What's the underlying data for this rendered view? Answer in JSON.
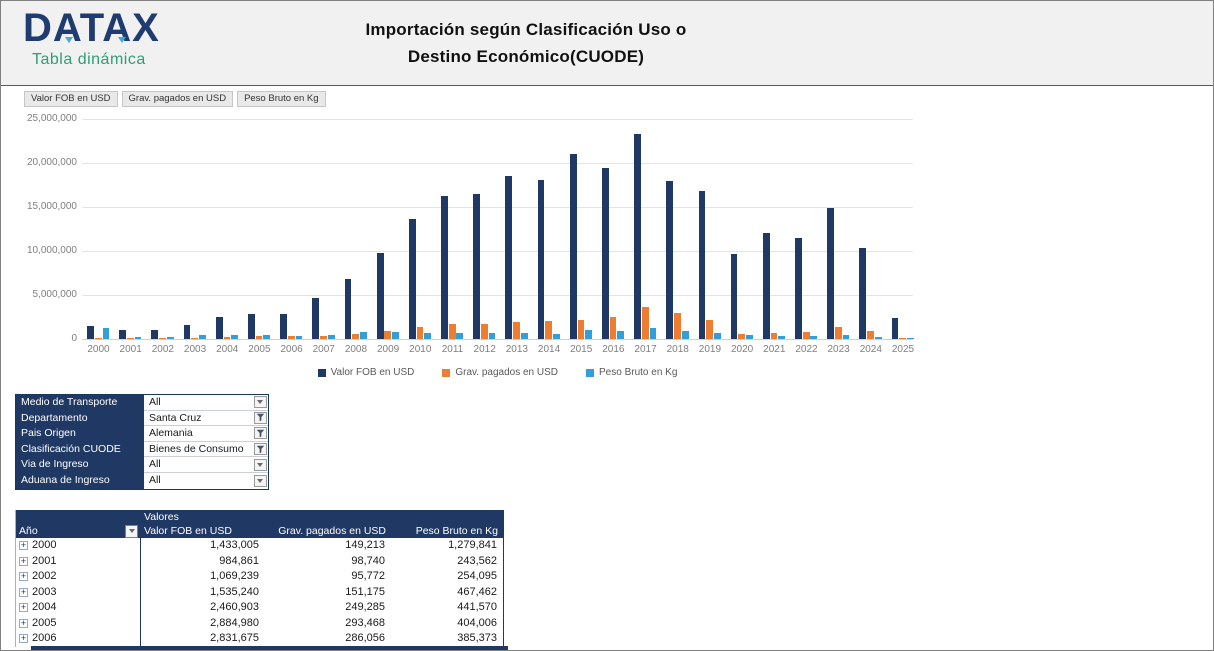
{
  "header": {
    "logo_text": "DATAX",
    "logo_subtitle": "Tabla dinámica",
    "title_line1": "Importación según Clasificación Uso o",
    "title_line2": "Destino Económico(CUODE)"
  },
  "field_buttons": [
    {
      "label": "Valor FOB en USD"
    },
    {
      "label": "Grav. pagados en USD"
    },
    {
      "label": "Peso Bruto en Kg"
    }
  ],
  "chart_data": {
    "type": "bar",
    "categories": [
      "2000",
      "2001",
      "2002",
      "2003",
      "2004",
      "2005",
      "2006",
      "2007",
      "2008",
      "2009",
      "2010",
      "2011",
      "2012",
      "2013",
      "2014",
      "2015",
      "2016",
      "2017",
      "2018",
      "2019",
      "2020",
      "2021",
      "2022",
      "2023",
      "2024",
      "2025"
    ],
    "series": [
      {
        "name": "Valor FOB en USD",
        "color": "#203864",
        "values": [
          1433005,
          984861,
          1069239,
          1535240,
          2460903,
          2884980,
          2831675,
          4650000,
          6850000,
          9750000,
          13650000,
          16250000,
          16500000,
          18550000,
          18100000,
          21000000,
          19450000,
          23250000,
          17950000,
          16850000,
          9700000,
          12050000,
          11500000,
          14900000,
          10350000,
          2350000
        ]
      },
      {
        "name": "Grav. pagados en USD",
        "color": "#ED7D31",
        "values": [
          149213,
          98740,
          95772,
          151175,
          249285,
          293468,
          286056,
          380000,
          620000,
          900000,
          1350000,
          1650000,
          1750000,
          1950000,
          2050000,
          2150000,
          2550000,
          3600000,
          2950000,
          2200000,
          600000,
          720000,
          800000,
          1400000,
          900000,
          130000
        ]
      },
      {
        "name": "Peso Bruto en Kg",
        "color": "#339FD9",
        "values": [
          1279841,
          243562,
          254095,
          467462,
          441570,
          404006,
          385373,
          480000,
          780000,
          800000,
          730000,
          650000,
          680000,
          650000,
          620000,
          1000000,
          920000,
          1200000,
          900000,
          700000,
          400000,
          330000,
          360000,
          460000,
          250000,
          40000
        ]
      }
    ],
    "ylim": [
      0,
      25000000
    ],
    "yticks": [
      {
        "value": 0,
        "label": "0"
      },
      {
        "value": 5000000,
        "label": "5,000,000"
      },
      {
        "value": 10000000,
        "label": "10,000,000"
      },
      {
        "value": 15000000,
        "label": "15,000,000"
      },
      {
        "value": 20000000,
        "label": "20,000,000"
      },
      {
        "value": 25000000,
        "label": "25,000,000"
      }
    ],
    "grid": true,
    "legend_position": "bottom",
    "title": "",
    "xlabel": "",
    "ylabel": ""
  },
  "filters": [
    {
      "label": "Medio de Transporte",
      "value": "All",
      "filtered": false
    },
    {
      "label": "Departamento",
      "value": "Santa Cruz",
      "filtered": true
    },
    {
      "label": "Pais Origen",
      "value": "Alemania",
      "filtered": true
    },
    {
      "label": "Clasificación CUODE",
      "value": "Bienes de Consumo",
      "filtered": true
    },
    {
      "label": "Via de Ingreso",
      "value": "All",
      "filtered": false
    },
    {
      "label": "Aduana de Ingreso",
      "value": "All",
      "filtered": false
    }
  ],
  "pivot_table": {
    "values_label": "Valores",
    "row_field": "Año",
    "value_columns": [
      "Valor FOB en USD",
      "Grav. pagados en USD",
      "Peso Bruto en Kg"
    ],
    "rows": [
      {
        "year": "2000",
        "values": [
          "1,433,005",
          "149,213",
          "1,279,841"
        ]
      },
      {
        "year": "2001",
        "values": [
          "984,861",
          "98,740",
          "243,562"
        ]
      },
      {
        "year": "2002",
        "values": [
          "1,069,239",
          "95,772",
          "254,095"
        ]
      },
      {
        "year": "2003",
        "values": [
          "1,535,240",
          "151,175",
          "467,462"
        ]
      },
      {
        "year": "2004",
        "values": [
          "2,460,903",
          "249,285",
          "441,570"
        ]
      },
      {
        "year": "2005",
        "values": [
          "2,884,980",
          "293,468",
          "404,006"
        ]
      },
      {
        "year": "2006",
        "values": [
          "2,831,675",
          "286,056",
          "385,373"
        ]
      }
    ]
  },
  "colors": {
    "navy": "#203864",
    "orange": "#ED7D31",
    "light_blue": "#339FD9",
    "green": "#2E9E77",
    "logo_accent": "#3FA9DC",
    "header_bg": "#F1F1F1"
  }
}
